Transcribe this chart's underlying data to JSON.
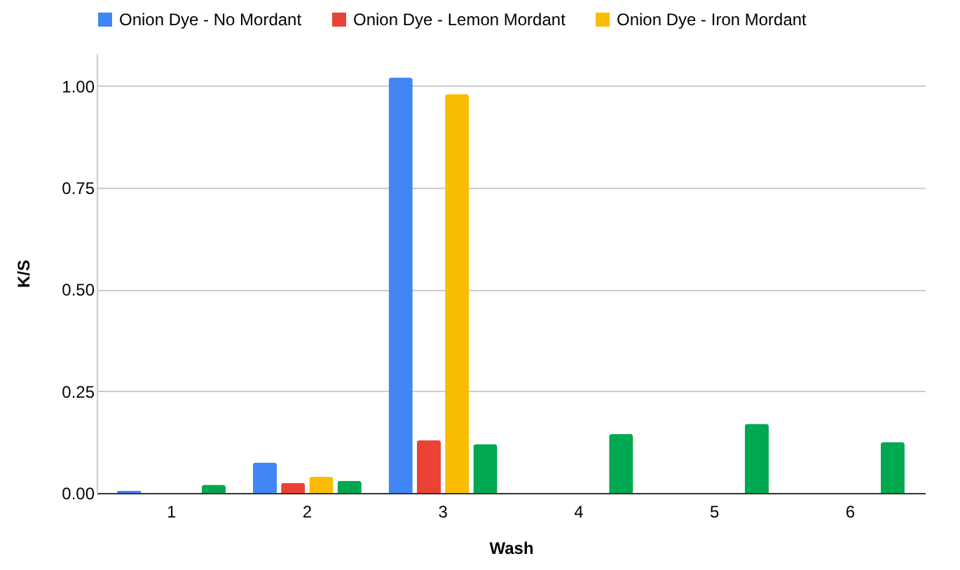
{
  "chart_data": {
    "type": "bar",
    "xlabel": "Wash",
    "ylabel": "K/S",
    "categories": [
      "1",
      "2",
      "3",
      "4",
      "5",
      "6"
    ],
    "series": [
      {
        "name": "Onion Dye - No Mordant",
        "color": "#4285f4",
        "values": [
          0.005,
          0.075,
          1.02,
          null,
          null,
          null
        ]
      },
      {
        "name": "Onion Dye - Lemon Mordant",
        "color": "#ea4335",
        "values": [
          null,
          0.025,
          0.13,
          null,
          null,
          null
        ]
      },
      {
        "name": "Onion Dye - Iron Mordant",
        "color": "#fbbc04",
        "values": [
          null,
          0.04,
          0.98,
          null,
          null,
          null
        ]
      },
      {
        "color": "#00a84f",
        "values": [
          0.02,
          0.03,
          0.12,
          0.145,
          0.17,
          0.125
        ]
      }
    ],
    "ylim": [
      0,
      1.08
    ],
    "yticks": [
      {
        "value": 0,
        "label": "0.00"
      },
      {
        "value": 0.25,
        "label": "0.25"
      },
      {
        "value": 0.5,
        "label": "0.50"
      },
      {
        "value": 0.75,
        "label": "0.75"
      },
      {
        "value": 1,
        "label": "1.00"
      }
    ],
    "grid": "y",
    "legend": "top"
  }
}
